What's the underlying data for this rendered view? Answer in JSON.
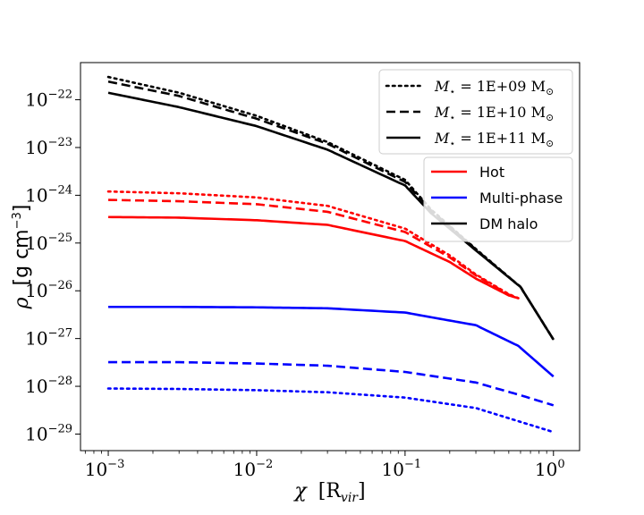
{
  "chart_data": {
    "type": "line",
    "title": "",
    "xscale": "log",
    "yscale": "log",
    "xlim": [
      0.00065,
      1.5
    ],
    "ylim": [
      4.5e-30,
      6e-22
    ],
    "xlabel": {
      "symbol": "χ",
      "unit": "[R",
      "unit_sub": "vir",
      "unit_close": "]"
    },
    "ylabel": {
      "symbol": "ρ",
      "unit": "[g cm",
      "unit_sup": "−3",
      "unit_close": "]"
    },
    "xticks": [
      {
        "value": 0.001,
        "base": "10",
        "exp": "−3"
      },
      {
        "value": 0.01,
        "base": "10",
        "exp": "−2"
      },
      {
        "value": 0.1,
        "base": "10",
        "exp": "−1"
      },
      {
        "value": 1,
        "base": "10",
        "exp": "0"
      }
    ],
    "yticks": [
      {
        "value": 1e-29,
        "base": "10",
        "exp": "−29"
      },
      {
        "value": 1e-28,
        "base": "10",
        "exp": "−28"
      },
      {
        "value": 1e-27,
        "base": "10",
        "exp": "−27"
      },
      {
        "value": 1e-26,
        "base": "10",
        "exp": "−26"
      },
      {
        "value": 1e-25,
        "base": "10",
        "exp": "−25"
      },
      {
        "value": 1e-24,
        "base": "10",
        "exp": "−24"
      },
      {
        "value": 1e-23,
        "base": "10",
        "exp": "−23"
      },
      {
        "value": 1e-22,
        "base": "10",
        "exp": "−22"
      }
    ],
    "colors": {
      "hot": "#ff0000",
      "multiphase": "#0000ff",
      "dm": "#000000"
    },
    "legend_mass": {
      "placement": "top-right",
      "entries": [
        {
          "style": "dotted",
          "prefix": "M",
          "sub": "⋆",
          "text": " = 1E+09 M",
          "sun": "⊙"
        },
        {
          "style": "dashed",
          "prefix": "M",
          "sub": "⋆",
          "text": " = 1E+10 M",
          "sun": "⊙"
        },
        {
          "style": "solid",
          "prefix": "M",
          "sub": "⋆",
          "text": " = 1E+11 M",
          "sun": "⊙"
        }
      ]
    },
    "legend_component": {
      "placement": "upper-right",
      "entries": [
        {
          "color": "#ff0000",
          "label": "Hot"
        },
        {
          "color": "#0000ff",
          "label": "Multi-phase"
        },
        {
          "color": "#000000",
          "label": "DM halo"
        }
      ]
    },
    "series": [
      {
        "name": "DM halo, M⋆=1E+09",
        "component": "dm",
        "style": "dotted",
        "x": [
          0.001,
          0.003,
          0.01,
          0.03,
          0.1,
          0.15,
          0.3,
          0.6,
          1.0
        ],
        "y": [
          3e-22,
          1.4e-22,
          4.6e-23,
          1.3e-23,
          2.1e-24,
          5e-25,
          7.5e-26,
          1.2e-26,
          9.5e-28
        ]
      },
      {
        "name": "DM halo, M⋆=1E+10",
        "component": "dm",
        "style": "dashed",
        "x": [
          0.001,
          0.003,
          0.01,
          0.03,
          0.1,
          0.15,
          0.3,
          0.6,
          1.0
        ],
        "y": [
          2.4e-22,
          1.2e-22,
          4e-23,
          1.2e-23,
          1.9e-24,
          4.8e-25,
          7.3e-26,
          1.2e-26,
          9.5e-28
        ]
      },
      {
        "name": "DM halo, M⋆=1E+11",
        "component": "dm",
        "style": "solid",
        "x": [
          0.001,
          0.003,
          0.01,
          0.03,
          0.1,
          0.15,
          0.3,
          0.6,
          1.0
        ],
        "y": [
          1.4e-22,
          7e-23,
          2.8e-23,
          9e-24,
          1.6e-24,
          4.2e-25,
          7e-26,
          1.2e-26,
          9.5e-28
        ]
      },
      {
        "name": "Hot, M⋆=1E+09",
        "component": "hot",
        "style": "dotted",
        "x": [
          0.001,
          0.003,
          0.01,
          0.03,
          0.1,
          0.2,
          0.3,
          0.5,
          0.58
        ],
        "y": [
          1.2e-24,
          1.1e-24,
          9e-25,
          6e-25,
          2e-25,
          5.5e-26,
          2.2e-26,
          8.5e-27,
          7e-27
        ]
      },
      {
        "name": "Hot, M⋆=1E+10",
        "component": "hot",
        "style": "dashed",
        "x": [
          0.001,
          0.003,
          0.01,
          0.03,
          0.1,
          0.2,
          0.3,
          0.5,
          0.58
        ],
        "y": [
          8e-25,
          7.5e-25,
          6.5e-25,
          4.5e-25,
          1.7e-25,
          5e-26,
          2.1e-26,
          8.3e-27,
          7e-27
        ]
      },
      {
        "name": "Hot, M⋆=1E+11",
        "component": "hot",
        "style": "solid",
        "x": [
          0.001,
          0.003,
          0.01,
          0.03,
          0.1,
          0.2,
          0.3,
          0.5,
          0.58
        ],
        "y": [
          3.5e-25,
          3.4e-25,
          3e-25,
          2.4e-25,
          1.1e-25,
          4e-26,
          1.8e-26,
          8e-27,
          7e-27
        ]
      },
      {
        "name": "Multi-phase, M⋆=1E+09",
        "component": "multiphase",
        "style": "dotted",
        "x": [
          0.001,
          0.003,
          0.01,
          0.03,
          0.1,
          0.3,
          0.6,
          1.0
        ],
        "y": [
          9e-29,
          8.8e-29,
          8.3e-29,
          7.5e-29,
          5.8e-29,
          3.5e-29,
          1.8e-29,
          1.1e-29
        ]
      },
      {
        "name": "Multi-phase, M⋆=1E+10",
        "component": "multiphase",
        "style": "dashed",
        "x": [
          0.001,
          0.003,
          0.01,
          0.03,
          0.1,
          0.3,
          0.6,
          1.0
        ],
        "y": [
          3.2e-28,
          3.2e-28,
          3e-28,
          2.7e-28,
          2e-28,
          1.2e-28,
          6.5e-29,
          4e-29
        ]
      },
      {
        "name": "Multi-phase, M⋆=1E+11",
        "component": "multiphase",
        "style": "solid",
        "x": [
          0.001,
          0.003,
          0.01,
          0.03,
          0.1,
          0.3,
          0.58,
          1.0
        ],
        "y": [
          4.6e-27,
          4.6e-27,
          4.5e-27,
          4.3e-27,
          3.5e-27,
          1.9e-27,
          7e-28,
          1.6e-28
        ]
      }
    ]
  }
}
